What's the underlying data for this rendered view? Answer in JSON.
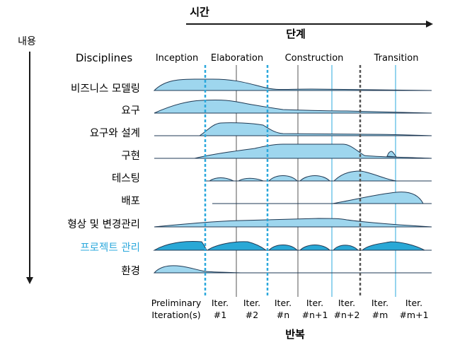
{
  "axis_labels": {
    "time": "시간",
    "content": "내용",
    "phases_heading": "단계",
    "disciplines_heading": "Disciplines",
    "iterations_heading": "반복"
  },
  "phases": [
    "Inception",
    "Elaboration",
    "Construction",
    "Transition"
  ],
  "disciplines": [
    {
      "label": "비즈니스 모델링",
      "highlight": false
    },
    {
      "label": "요구",
      "highlight": false
    },
    {
      "label": "요구와 설계",
      "highlight": false
    },
    {
      "label": "구현",
      "highlight": false
    },
    {
      "label": "테스팅",
      "highlight": false
    },
    {
      "label": "배포",
      "highlight": false
    },
    {
      "label": "형상 및 변경관리",
      "highlight": false
    },
    {
      "label": "프로젝트 관리",
      "highlight": true
    },
    {
      "label": "환경",
      "highlight": false
    }
  ],
  "iterations": [
    [
      "Preliminary",
      "Iteration(s)"
    ],
    [
      "Iter.",
      "#1"
    ],
    [
      "Iter.",
      "#2"
    ],
    [
      "Iter.",
      "#n"
    ],
    [
      "Iter.",
      "#n+1"
    ],
    [
      "Iter.",
      "#n+2"
    ],
    [
      "Iter.",
      "#m"
    ],
    [
      "Iter.",
      "#m+1"
    ]
  ],
  "colors": {
    "area_fill": "#9ed6ee",
    "area_fill_dark": "#29a8d6",
    "outline": "#1f3a55",
    "accent_blue": "#2ba8dc",
    "milestone_gray": "#555555",
    "text": "#1a1a1a"
  }
}
